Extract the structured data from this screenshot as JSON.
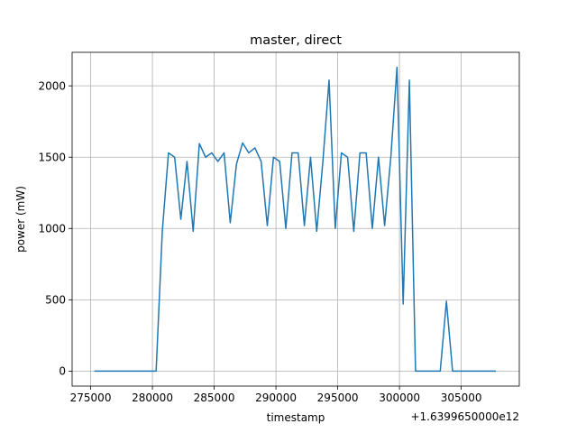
{
  "chart_data": {
    "type": "line",
    "title": "master, direct",
    "xlabel": "timestamp",
    "ylabel": "power (mW)",
    "x_offset_label": "+1.6399650000e12",
    "xlim": [
      273500,
      309700
    ],
    "ylim": [
      -105,
      2235
    ],
    "xticks": [
      275000,
      280000,
      285000,
      290000,
      295000,
      300000,
      305000
    ],
    "xtick_labels": [
      "275000",
      "280000",
      "285000",
      "290000",
      "295000",
      "300000",
      "305000"
    ],
    "yticks": [
      0,
      500,
      1000,
      1500,
      2000
    ],
    "ytick_labels": [
      "0",
      "500",
      "1000",
      "1500",
      "2000"
    ],
    "grid": true,
    "series": [
      {
        "color": "#1f77b4",
        "x": [
          275300,
          276300,
          277300,
          278300,
          279300,
          280300,
          280800,
          281300,
          281800,
          282300,
          282800,
          283300,
          283800,
          284300,
          284800,
          285300,
          285800,
          286300,
          286800,
          287300,
          287800,
          288300,
          288800,
          289300,
          289800,
          290300,
          290800,
          291300,
          291800,
          292300,
          292800,
          293300,
          293800,
          294300,
          294800,
          295300,
          295800,
          296300,
          296800,
          297300,
          297800,
          298300,
          298800,
          299300,
          299800,
          300300,
          300800,
          301300,
          302300,
          303300,
          303800,
          304300,
          305300,
          306300,
          307800
        ],
        "y": [
          0,
          0,
          0,
          0,
          0,
          0,
          980,
          1530,
          1500,
          1065,
          1470,
          980,
          1595,
          1500,
          1530,
          1470,
          1530,
          1040,
          1450,
          1600,
          1530,
          1565,
          1470,
          1020,
          1500,
          1470,
          1000,
          1530,
          1530,
          1020,
          1500,
          980,
          1470,
          2040,
          1000,
          1530,
          1500,
          980,
          1530,
          1530,
          1000,
          1500,
          1020,
          1500,
          2130,
          470,
          2040,
          0,
          0,
          0,
          490,
          0,
          0,
          0,
          0
        ]
      }
    ]
  }
}
